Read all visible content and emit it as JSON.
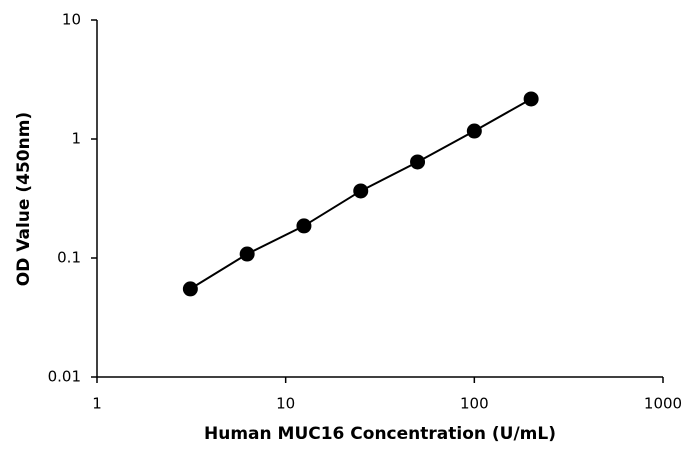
{
  "chart_data": {
    "type": "line",
    "x_label": "Human MUC16 Concentration  (U/mL)",
    "y_label": "OD Value (450nm)",
    "x": [
      3.125,
      6.25,
      12.5,
      25,
      50,
      100,
      200
    ],
    "series": [
      {
        "color": "#000000",
        "values": [
          0.055,
          0.108,
          0.186,
          0.366,
          0.641,
          1.167,
          2.17
        ]
      }
    ],
    "xlim": [
      1,
      1000
    ],
    "xticks": [
      1,
      10,
      100,
      1000
    ],
    "ylim": [
      0.01,
      10
    ],
    "yticks": [
      0.01,
      0.1,
      1,
      10
    ],
    "xscale": "log",
    "yscale": "log",
    "markers": true
  }
}
